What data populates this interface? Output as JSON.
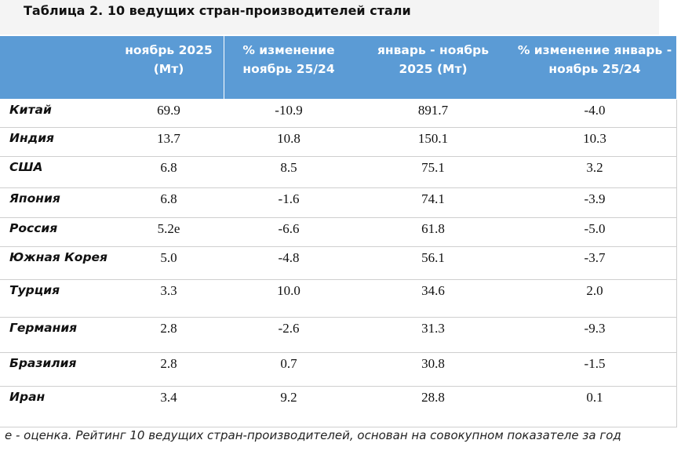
{
  "header": {
    "title": "Таблица 2. 10 ведущих стран-производителей стали"
  },
  "table": {
    "columns": [
      "ноябрь 2025 (Мт)",
      "% изменение ноябрь 25/24",
      "январь - ноябрь 2025 (Мт)",
      "% изменение январь - ноябрь 25/24"
    ],
    "rows": [
      [
        "Китай",
        "69.9",
        "-10.9",
        "891.7",
        "-4.0"
      ],
      [
        "Индия",
        "13.7",
        "10.8",
        "150.1",
        "10.3"
      ],
      [
        "США",
        "6.8",
        "8.5",
        "75.1",
        "3.2"
      ],
      [
        "Япония",
        "6.8",
        "-1.6",
        "74.1",
        "-3.9"
      ],
      [
        "Россия",
        "5.2e",
        "-6.6",
        "61.8",
        "-5.0"
      ],
      [
        "Южная Корея",
        "5.0",
        "-4.8",
        "56.1",
        "-3.7"
      ],
      [
        "Турция",
        "3.3",
        "10.0",
        "34.6",
        "2.0"
      ],
      [
        "Германия",
        "2.8",
        "-2.6",
        "31.3",
        "-9.3"
      ],
      [
        "Бразилия",
        "2.8",
        "0.7",
        "30.8",
        "-1.5"
      ],
      [
        "Иран",
        "3.4",
        "9.2",
        "28.8",
        "0.1"
      ]
    ]
  },
  "footnote": "е - оценка. Рейтинг 10 ведущих стран-производителей, основан на совокупном показателе за год"
}
